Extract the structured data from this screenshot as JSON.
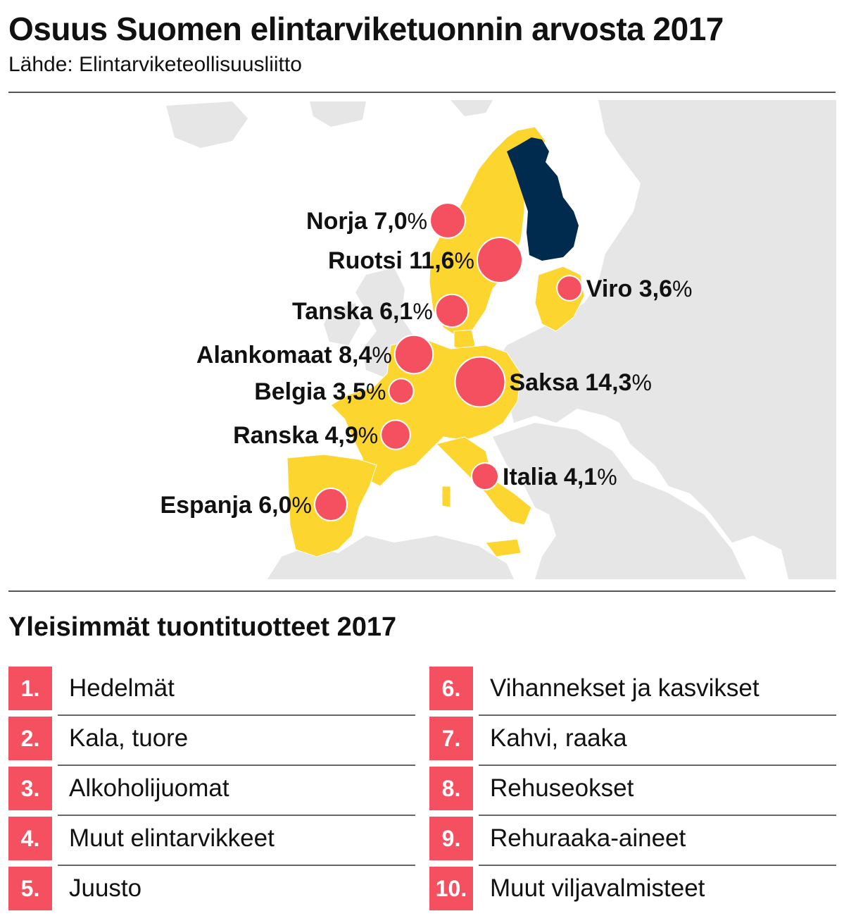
{
  "header": {
    "title": "Osuus Suomen elintarviketuonnin arvosta 2017",
    "source": "Lähde: Elintarviketeollisuusliitto"
  },
  "colors": {
    "land": "#e6e6e6",
    "eu_highlight": "#fcd52f",
    "finland": "#002a4e",
    "bubble": "#f4505f",
    "number_box": "#f4505f"
  },
  "map": {
    "countries": [
      {
        "name": "Norja",
        "percent": 7.0,
        "label_name": "Norja",
        "label_value": "7,0"
      },
      {
        "name": "Ruotsi",
        "percent": 11.6,
        "label_name": "Ruotsi",
        "label_value": "11,6"
      },
      {
        "name": "Viro",
        "percent": 3.6,
        "label_name": "Viro",
        "label_value": "3,6"
      },
      {
        "name": "Tanska",
        "percent": 6.1,
        "label_name": "Tanska",
        "label_value": "6,1"
      },
      {
        "name": "Alankomaat",
        "percent": 8.4,
        "label_name": "Alankomaat",
        "label_value": "8,4"
      },
      {
        "name": "Saksa",
        "percent": 14.3,
        "label_name": "Saksa",
        "label_value": "14,3"
      },
      {
        "name": "Belgia",
        "percent": 3.5,
        "label_name": "Belgia",
        "label_value": "3,5"
      },
      {
        "name": "Ranska",
        "percent": 4.9,
        "label_name": "Ranska",
        "label_value": "4,9"
      },
      {
        "name": "Italia",
        "percent": 4.1,
        "label_name": "Italia",
        "label_value": "4,1"
      },
      {
        "name": "Espanja",
        "percent": 6.0,
        "label_name": "Espanja",
        "label_value": "6,0"
      }
    ],
    "percent_sign": "%"
  },
  "products": {
    "title": "Yleisimmät tuontituotteet 2017",
    "items": [
      {
        "rank": "1.",
        "name": "Hedelmät"
      },
      {
        "rank": "2.",
        "name": "Kala, tuore"
      },
      {
        "rank": "3.",
        "name": "Alkoholijuomat"
      },
      {
        "rank": "4.",
        "name": "Muut elintarvikkeet"
      },
      {
        "rank": "5.",
        "name": "Juusto"
      },
      {
        "rank": "6.",
        "name": "Vihannekset ja kasvikset"
      },
      {
        "rank": "7.",
        "name": "Kahvi, raaka"
      },
      {
        "rank": "8.",
        "name": "Rehuseokset"
      },
      {
        "rank": "9.",
        "name": "Rehuraaka-aineet"
      },
      {
        "rank": "10.",
        "name": "Muut viljavalmisteet"
      }
    ]
  }
}
